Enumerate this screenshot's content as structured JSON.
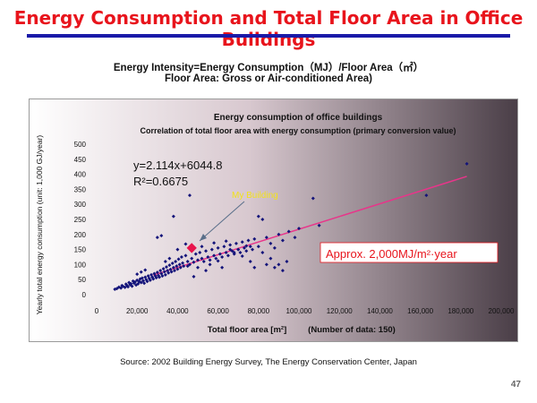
{
  "slide": {
    "title": "Energy Consumption and Total Floor Area  in Office Buildings",
    "subtitle_line1": "Energy Intensity=Energy  Consumption（MJ）/Floor  Area（㎡）",
    "subtitle_line2": "Floor Area: Gross or Air-conditioned  Area)",
    "source": "Source:  2002 Building Energy Survey, The Energy Conservation Center, Japan",
    "page_number": "47"
  },
  "colors": {
    "title": "#e8141c",
    "rule": "#1a1aa8",
    "points": "#14147a",
    "trendline": "#e8358a",
    "my_building": "#e8144c",
    "annotation_text": "#e8141c",
    "my_building_label": "#f2e21a"
  },
  "chart_data": {
    "type": "scatter",
    "title": "Energy consumption of office buildings",
    "subtitle": "Correlation of total floor area with energy consumption (primary conversion value)",
    "xlabel": "Total floor area [m²]",
    "xlabel_note": "(Number of data: 150)",
    "ylabel": "Yearly total energy consumption  (unit: 1,000 GJ/year)",
    "xlim": [
      0,
      200000
    ],
    "ylim": [
      0,
      500
    ],
    "x_ticks": [
      "0",
      "20,000",
      "40,000",
      "60,000",
      "80,000",
      "100,000",
      "120,000",
      "140,000",
      "160,000",
      "180,000",
      "200,000"
    ],
    "y_ticks": [
      "0",
      "50",
      "100",
      "150",
      "200",
      "250",
      "300",
      "350",
      "400",
      "450",
      "500"
    ],
    "x_tick_values": [
      0,
      20000,
      40000,
      60000,
      80000,
      100000,
      120000,
      140000,
      160000,
      180000,
      200000
    ],
    "y_tick_values": [
      0,
      50,
      100,
      150,
      200,
      250,
      300,
      350,
      400,
      450,
      500
    ],
    "regression_line1": "y=2.114x+6044.8",
    "regression_line2": "R²=0.6675",
    "trendline": {
      "x": [
        28000,
        183000
      ],
      "y": [
        65,
        393
      ]
    },
    "my_building": {
      "label": "My Building",
      "x": 47000,
      "y": 155
    },
    "annotation": "Approx. 2,000MJ/m²·year",
    "points": [
      [
        9000,
        18
      ],
      [
        10000,
        20
      ],
      [
        11000,
        25
      ],
      [
        12000,
        22
      ],
      [
        12500,
        30
      ],
      [
        13000,
        28
      ],
      [
        14000,
        24
      ],
      [
        14500,
        35
      ],
      [
        15000,
        30
      ],
      [
        15500,
        26
      ],
      [
        16000,
        40
      ],
      [
        16500,
        33
      ],
      [
        17000,
        36
      ],
      [
        17500,
        28
      ],
      [
        18000,
        45
      ],
      [
        18500,
        38
      ],
      [
        19000,
        42
      ],
      [
        19500,
        32
      ],
      [
        20000,
        48
      ],
      [
        20500,
        36
      ],
      [
        21000,
        44
      ],
      [
        21500,
        52
      ],
      [
        22000,
        40
      ],
      [
        22500,
        55
      ],
      [
        23000,
        46
      ],
      [
        23500,
        38
      ],
      [
        24000,
        58
      ],
      [
        24500,
        50
      ],
      [
        25000,
        44
      ],
      [
        25500,
        62
      ],
      [
        26000,
        54
      ],
      [
        26500,
        48
      ],
      [
        27000,
        66
      ],
      [
        27500,
        58
      ],
      [
        28000,
        52
      ],
      [
        28500,
        70
      ],
      [
        29000,
        62
      ],
      [
        29500,
        56
      ],
      [
        30000,
        74
      ],
      [
        30500,
        64
      ],
      [
        31000,
        58
      ],
      [
        31500,
        80
      ],
      [
        32000,
        70
      ],
      [
        32500,
        62
      ],
      [
        33000,
        86
      ],
      [
        33500,
        76
      ],
      [
        34000,
        66
      ],
      [
        34500,
        92
      ],
      [
        35000,
        80
      ],
      [
        35500,
        72
      ],
      [
        36000,
        98
      ],
      [
        36500,
        84
      ],
      [
        37000,
        76
      ],
      [
        37500,
        104
      ],
      [
        38000,
        90
      ],
      [
        38500,
        80
      ],
      [
        39000,
        110
      ],
      [
        39500,
        95
      ],
      [
        40000,
        85
      ],
      [
        40500,
        118
      ],
      [
        41000,
        100
      ],
      [
        41500,
        90
      ],
      [
        42000,
        125
      ],
      [
        42500,
        105
      ],
      [
        43000,
        95
      ],
      [
        44000,
        130
      ],
      [
        45000,
        110
      ],
      [
        46000,
        100
      ],
      [
        47000,
        120
      ],
      [
        48000,
        108
      ],
      [
        49000,
        135
      ],
      [
        50000,
        115
      ],
      [
        51000,
        140
      ],
      [
        52000,
        120
      ],
      [
        53000,
        110
      ],
      [
        54000,
        145
      ],
      [
        55000,
        125
      ],
      [
        56000,
        115
      ],
      [
        57000,
        150
      ],
      [
        58000,
        130
      ],
      [
        59000,
        120
      ],
      [
        60000,
        155
      ],
      [
        61000,
        135
      ],
      [
        62000,
        125
      ],
      [
        63000,
        160
      ],
      [
        64000,
        140
      ],
      [
        65000,
        130
      ],
      [
        66000,
        165
      ],
      [
        67000,
        145
      ],
      [
        68000,
        135
      ],
      [
        69000,
        170
      ],
      [
        70000,
        150
      ],
      [
        71000,
        140
      ],
      [
        72000,
        175
      ],
      [
        73000,
        155
      ],
      [
        74000,
        145
      ],
      [
        75000,
        180
      ],
      [
        76000,
        160
      ],
      [
        77000,
        150
      ],
      [
        78000,
        185
      ],
      [
        80000,
        160
      ],
      [
        82000,
        140
      ],
      [
        84000,
        190
      ],
      [
        86000,
        170
      ],
      [
        88000,
        155
      ],
      [
        90000,
        200
      ],
      [
        92000,
        180
      ],
      [
        95000,
        210
      ],
      [
        98000,
        190
      ],
      [
        100000,
        220
      ],
      [
        20000,
        68
      ],
      [
        22000,
        75
      ],
      [
        24000,
        82
      ],
      [
        30000,
        190
      ],
      [
        32000,
        196
      ],
      [
        34000,
        110
      ],
      [
        36000,
        120
      ],
      [
        38000,
        260
      ],
      [
        40000,
        150
      ],
      [
        44000,
        168
      ],
      [
        46000,
        330
      ],
      [
        48000,
        60
      ],
      [
        50000,
        90
      ],
      [
        52000,
        160
      ],
      [
        54000,
        80
      ],
      [
        56000,
        100
      ],
      [
        58000,
        172
      ],
      [
        60000,
        112
      ],
      [
        62000,
        90
      ],
      [
        64000,
        178
      ],
      [
        66000,
        150
      ],
      [
        68000,
        140
      ],
      [
        70000,
        150
      ],
      [
        72000,
        128
      ],
      [
        74000,
        162
      ],
      [
        76000,
        110
      ],
      [
        78000,
        90
      ],
      [
        80000,
        260
      ],
      [
        82000,
        250
      ],
      [
        84000,
        100
      ],
      [
        86000,
        120
      ],
      [
        88000,
        90
      ],
      [
        90000,
        100
      ],
      [
        92000,
        80
      ],
      [
        94000,
        110
      ],
      [
        107000,
        320
      ],
      [
        110000,
        230
      ],
      [
        163000,
        330
      ],
      [
        183000,
        435
      ],
      [
        45000,
        95
      ]
    ]
  }
}
